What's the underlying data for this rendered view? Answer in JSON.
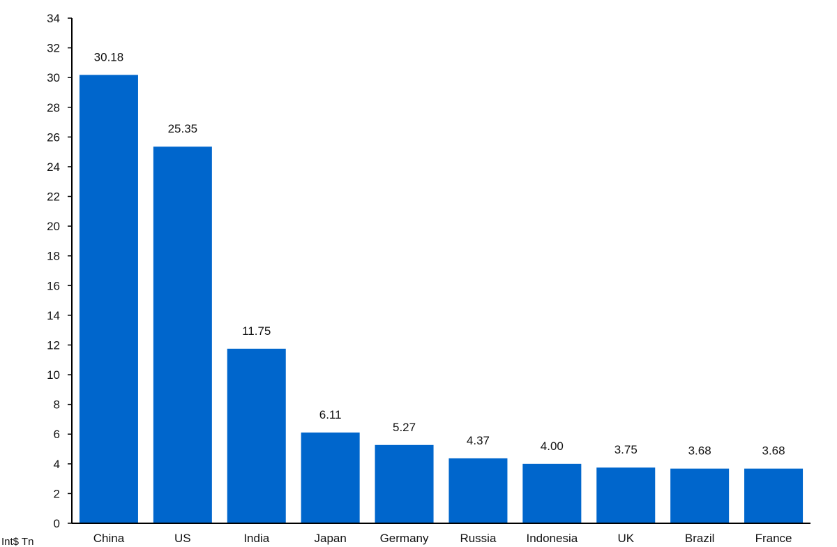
{
  "chart_data": {
    "type": "bar",
    "categories": [
      "China",
      "US",
      "India",
      "Japan",
      "Germany",
      "Russia",
      "Indonesia",
      "UK",
      "Brazil",
      "France"
    ],
    "values": [
      30.18,
      25.35,
      11.75,
      6.11,
      5.27,
      4.37,
      4.0,
      3.75,
      3.68,
      3.68
    ],
    "data_labels": [
      "30.18",
      "25.35",
      "11.75",
      "6.11",
      "5.27",
      "4.37",
      "4.00",
      "3.75",
      "3.68",
      "3.68"
    ],
    "ylim": [
      0,
      34
    ],
    "yticks": [
      0,
      2,
      4,
      6,
      8,
      10,
      12,
      14,
      16,
      18,
      20,
      22,
      24,
      26,
      28,
      30,
      32,
      34
    ],
    "unit_label": "Int$ Tn",
    "bar_color": "#0066cc",
    "grid": false,
    "legend": "none"
  }
}
